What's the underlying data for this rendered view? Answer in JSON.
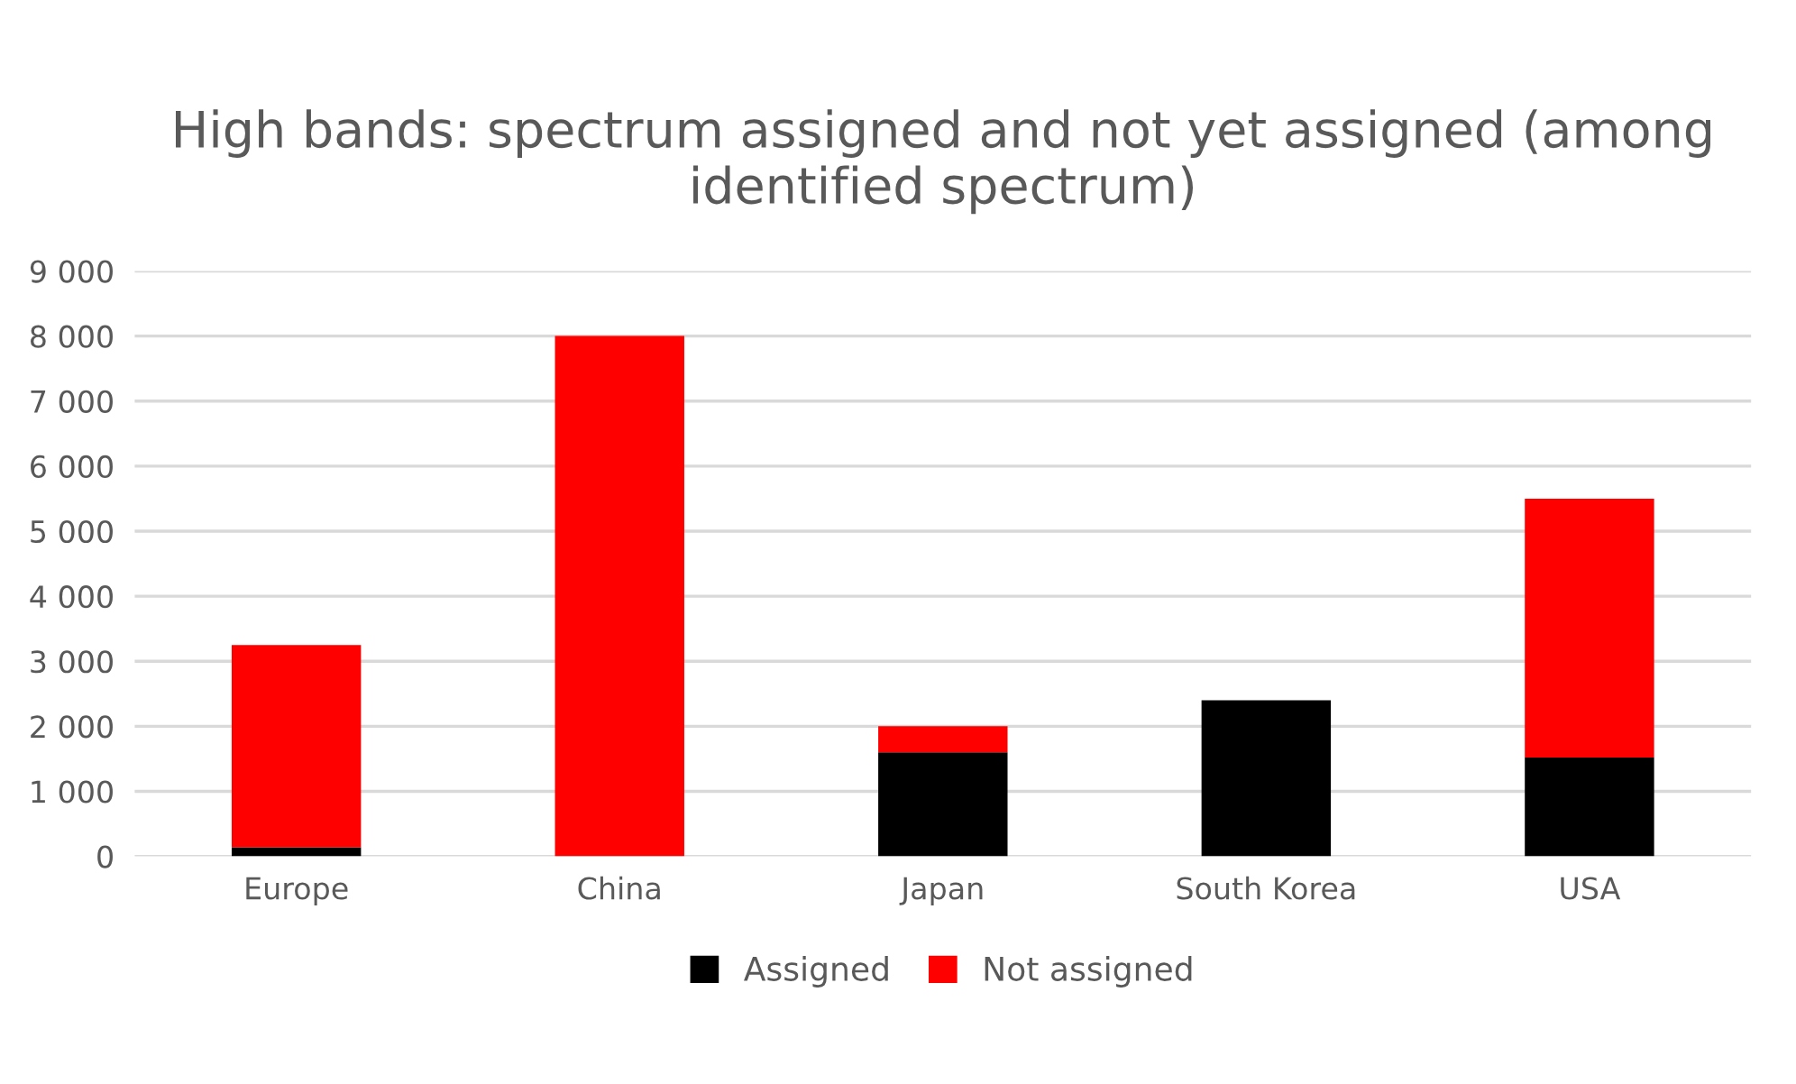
{
  "chart_data": {
    "type": "bar",
    "title": "High bands: spectrum assigned and not yet assigned (among identified spectrum)",
    "categories": [
      "Europe",
      "China",
      "Japan",
      "South Korea",
      "USA"
    ],
    "stacked": true,
    "series": [
      {
        "name": "Assigned",
        "color": "#000000",
        "values": [
          140,
          0,
          1600,
          2400,
          1520
        ]
      },
      {
        "name": "Not assigned",
        "color": "#ff0000",
        "values": [
          3110,
          8000,
          400,
          0,
          3980
        ]
      }
    ],
    "ylim": [
      0,
      9000
    ],
    "yticks": [
      {
        "value": 0,
        "label": "0"
      },
      {
        "value": 1000,
        "label": "1 000"
      },
      {
        "value": 2000,
        "label": "2 000"
      },
      {
        "value": 3000,
        "label": "3 000"
      },
      {
        "value": 4000,
        "label": "4 000"
      },
      {
        "value": 5000,
        "label": "5 000"
      },
      {
        "value": 6000,
        "label": "6 000"
      },
      {
        "value": 7000,
        "label": "7 000"
      },
      {
        "value": 8000,
        "label": "8 000"
      },
      {
        "value": 9000,
        "label": "9 000"
      }
    ],
    "grid": "y",
    "legend": "bottom"
  }
}
